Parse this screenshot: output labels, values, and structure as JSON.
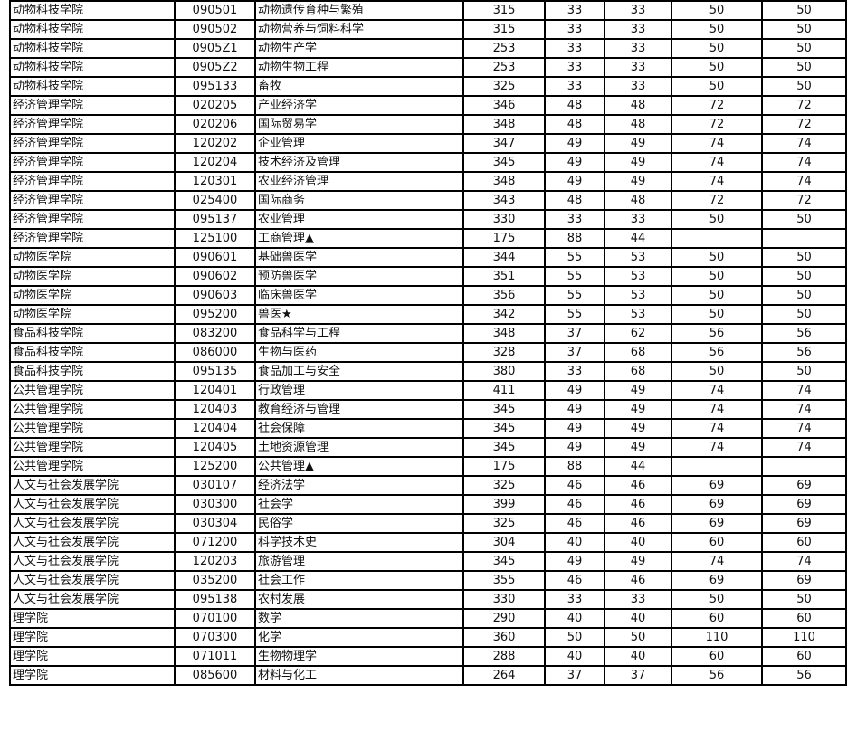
{
  "table": {
    "rows": [
      [
        "动物科技学院",
        "090501",
        "动物遗传育种与繁殖",
        "315",
        "33",
        "33",
        "50",
        "50"
      ],
      [
        "动物科技学院",
        "090502",
        "动物营养与饲料科学",
        "315",
        "33",
        "33",
        "50",
        "50"
      ],
      [
        "动物科技学院",
        "0905Z1",
        "动物生产学",
        "253",
        "33",
        "33",
        "50",
        "50"
      ],
      [
        "动物科技学院",
        "0905Z2",
        "动物生物工程",
        "253",
        "33",
        "33",
        "50",
        "50"
      ],
      [
        "动物科技学院",
        "095133",
        "畜牧",
        "325",
        "33",
        "33",
        "50",
        "50"
      ],
      [
        "经济管理学院",
        "020205",
        "产业经济学",
        "346",
        "48",
        "48",
        "72",
        "72"
      ],
      [
        "经济管理学院",
        "020206",
        "国际贸易学",
        "348",
        "48",
        "48",
        "72",
        "72"
      ],
      [
        "经济管理学院",
        "120202",
        "企业管理",
        "347",
        "49",
        "49",
        "74",
        "74"
      ],
      [
        "经济管理学院",
        "120204",
        "技术经济及管理",
        "345",
        "49",
        "49",
        "74",
        "74"
      ],
      [
        "经济管理学院",
        "120301",
        "农业经济管理",
        "348",
        "49",
        "49",
        "74",
        "74"
      ],
      [
        "经济管理学院",
        "025400",
        "国际商务",
        "343",
        "48",
        "48",
        "72",
        "72"
      ],
      [
        "经济管理学院",
        "095137",
        "农业管理",
        "330",
        "33",
        "33",
        "50",
        "50"
      ],
      [
        "经济管理学院",
        "125100",
        "工商管理▲",
        "175",
        "88",
        "44",
        "",
        ""
      ],
      [
        "动物医学院",
        "090601",
        "基础兽医学",
        "344",
        "55",
        "53",
        "50",
        "50"
      ],
      [
        "动物医学院",
        "090602",
        "预防兽医学",
        "351",
        "55",
        "53",
        "50",
        "50"
      ],
      [
        "动物医学院",
        "090603",
        "临床兽医学",
        "356",
        "55",
        "53",
        "50",
        "50"
      ],
      [
        "动物医学院",
        "095200",
        "兽医★",
        "342",
        "55",
        "53",
        "50",
        "50"
      ],
      [
        "食品科技学院",
        "083200",
        "食品科学与工程",
        "348",
        "37",
        "62",
        "56",
        "56"
      ],
      [
        "食品科技学院",
        "086000",
        "生物与医药",
        "328",
        "37",
        "68",
        "56",
        "56"
      ],
      [
        "食品科技学院",
        "095135",
        "食品加工与安全",
        "380",
        "33",
        "68",
        "50",
        "50"
      ],
      [
        "公共管理学院",
        "120401",
        "行政管理",
        "411",
        "49",
        "49",
        "74",
        "74"
      ],
      [
        "公共管理学院",
        "120403",
        "教育经济与管理",
        "345",
        "49",
        "49",
        "74",
        "74"
      ],
      [
        "公共管理学院",
        "120404",
        "社会保障",
        "345",
        "49",
        "49",
        "74",
        "74"
      ],
      [
        "公共管理学院",
        "120405",
        "土地资源管理",
        "345",
        "49",
        "49",
        "74",
        "74"
      ],
      [
        "公共管理学院",
        "125200",
        "公共管理▲",
        "175",
        "88",
        "44",
        "",
        ""
      ],
      [
        "人文与社会发展学院",
        "030107",
        "经济法学",
        "325",
        "46",
        "46",
        "69",
        "69"
      ],
      [
        "人文与社会发展学院",
        "030300",
        "社会学",
        "399",
        "46",
        "46",
        "69",
        "69"
      ],
      [
        "人文与社会发展学院",
        "030304",
        "民俗学",
        "325",
        "46",
        "46",
        "69",
        "69"
      ],
      [
        "人文与社会发展学院",
        "071200",
        "科学技术史",
        "304",
        "40",
        "40",
        "60",
        "60"
      ],
      [
        "人文与社会发展学院",
        "120203",
        "旅游管理",
        "345",
        "49",
        "49",
        "74",
        "74"
      ],
      [
        "人文与社会发展学院",
        "035200",
        "社会工作",
        "355",
        "46",
        "46",
        "69",
        "69"
      ],
      [
        "人文与社会发展学院",
        "095138",
        "农村发展",
        "330",
        "33",
        "33",
        "50",
        "50"
      ],
      [
        "理学院",
        "070100",
        "数学",
        "290",
        "40",
        "40",
        "60",
        "60"
      ],
      [
        "理学院",
        "070300",
        "化学",
        "360",
        "50",
        "50",
        "110",
        "110"
      ],
      [
        "理学院",
        "071011",
        "生物物理学",
        "288",
        "40",
        "40",
        "60",
        "60"
      ],
      [
        "理学院",
        "085600",
        "材料与化工",
        "264",
        "37",
        "37",
        "56",
        "56"
      ]
    ]
  }
}
